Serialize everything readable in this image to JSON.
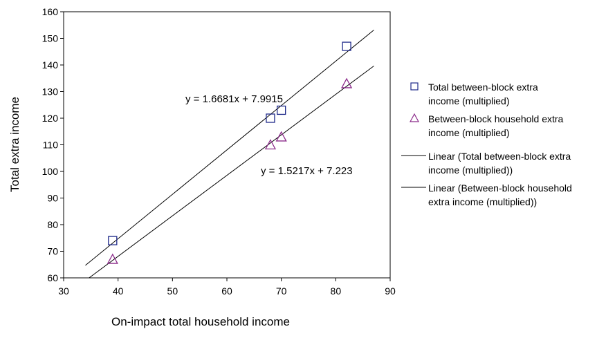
{
  "chart_data": {
    "type": "scatter",
    "xlabel": "On-impact total household income",
    "ylabel": "Total extra income",
    "xlim": [
      30,
      90
    ],
    "ylim": [
      60,
      160
    ],
    "x_ticks": [
      30,
      40,
      50,
      60,
      70,
      80,
      90
    ],
    "y_ticks": [
      60,
      70,
      80,
      90,
      100,
      110,
      120,
      130,
      140,
      150,
      160
    ],
    "grid": false,
    "legend_position": "right",
    "series": [
      {
        "name": "Total between-block extra income (multiplied)",
        "marker": "square",
        "color": "#1f2a8a",
        "points": [
          {
            "x": 39,
            "y": 74
          },
          {
            "x": 68,
            "y": 120
          },
          {
            "x": 70,
            "y": 123
          },
          {
            "x": 82,
            "y": 147
          }
        ]
      },
      {
        "name": "Between-block household extra income (multiplied)",
        "marker": "triangle",
        "color": "#8b2a8a",
        "points": [
          {
            "x": 39,
            "y": 67
          },
          {
            "x": 68,
            "y": 110
          },
          {
            "x": 70,
            "y": 113
          },
          {
            "x": 82,
            "y": 133
          }
        ]
      }
    ],
    "trendlines": [
      {
        "name": "Linear (Total between-block extra income (multiplied))",
        "slope": 1.6681,
        "intercept": 7.9915,
        "x_range": [
          34,
          87
        ],
        "equation": "y = 1.6681x + 7.9915"
      },
      {
        "name": "Linear (Between-block household extra income (multiplied))",
        "slope": 1.5217,
        "intercept": 7.223,
        "x_range": [
          34.7,
          87
        ],
        "equation": "y = 1.5217x + 7.223"
      }
    ],
    "legend": [
      {
        "line1": "Total between-block extra",
        "line2": "income (multiplied)"
      },
      {
        "line1": "Between-block household extra",
        "line2": "income (multiplied)"
      },
      {
        "line1": "Linear (Total between-block extra",
        "line2": "income (multiplied))"
      },
      {
        "line1": "Linear (Between-block household",
        "line2": "extra income (multiplied))"
      }
    ]
  }
}
